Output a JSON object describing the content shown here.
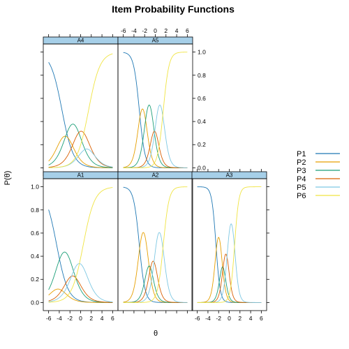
{
  "chart_data": {
    "type": "line",
    "title": "Item Probability Functions",
    "xlabel": "θ",
    "ylabel": "P(θ)",
    "xlim": [
      -7,
      7
    ],
    "ylim": [
      -0.07,
      1.07
    ],
    "x_ticks": [
      -6,
      -4,
      -2,
      0,
      2,
      4,
      6
    ],
    "y_ticks": [
      0.0,
      0.2,
      0.4,
      0.6,
      0.8,
      1.0
    ],
    "x_tick_labels": [
      "-6",
      "-4",
      "-2",
      "0",
      "2",
      "4",
      "6"
    ],
    "y_tick_labels": [
      "0.0",
      "0.2",
      "0.4",
      "0.6",
      "0.8",
      "1.0"
    ],
    "grid": false,
    "legend_position": "right",
    "series_names": [
      "P1",
      "P2",
      "P3",
      "P4",
      "P5",
      "P6"
    ],
    "series_colors": [
      "#1f78b4",
      "#e69f00",
      "#1b9e77",
      "#d95f02",
      "#7ec8e3",
      "#f0e442"
    ],
    "panels": [
      {
        "name": "A4",
        "a": 0.55,
        "b": [
          -3.5,
          -2.3,
          -0.6,
          0.8,
          1.5
        ]
      },
      {
        "name": "A5",
        "a": 1.1,
        "b": [
          -3.0,
          -1.8,
          -0.5,
          0.2,
          1.5
        ]
      },
      {
        "name": "A1",
        "a": 0.55,
        "b": [
          -4.5,
          -4.0,
          -2.0,
          -1.0,
          0.5
        ]
      },
      {
        "name": "A2",
        "a": 1.1,
        "b": [
          -3.0,
          -1.5,
          -0.8,
          0.0,
          1.5
        ]
      },
      {
        "name": "A3",
        "a": 1.5,
        "b": [
          -2.5,
          -1.5,
          -1.0,
          -0.3,
          1.0
        ]
      }
    ]
  }
}
